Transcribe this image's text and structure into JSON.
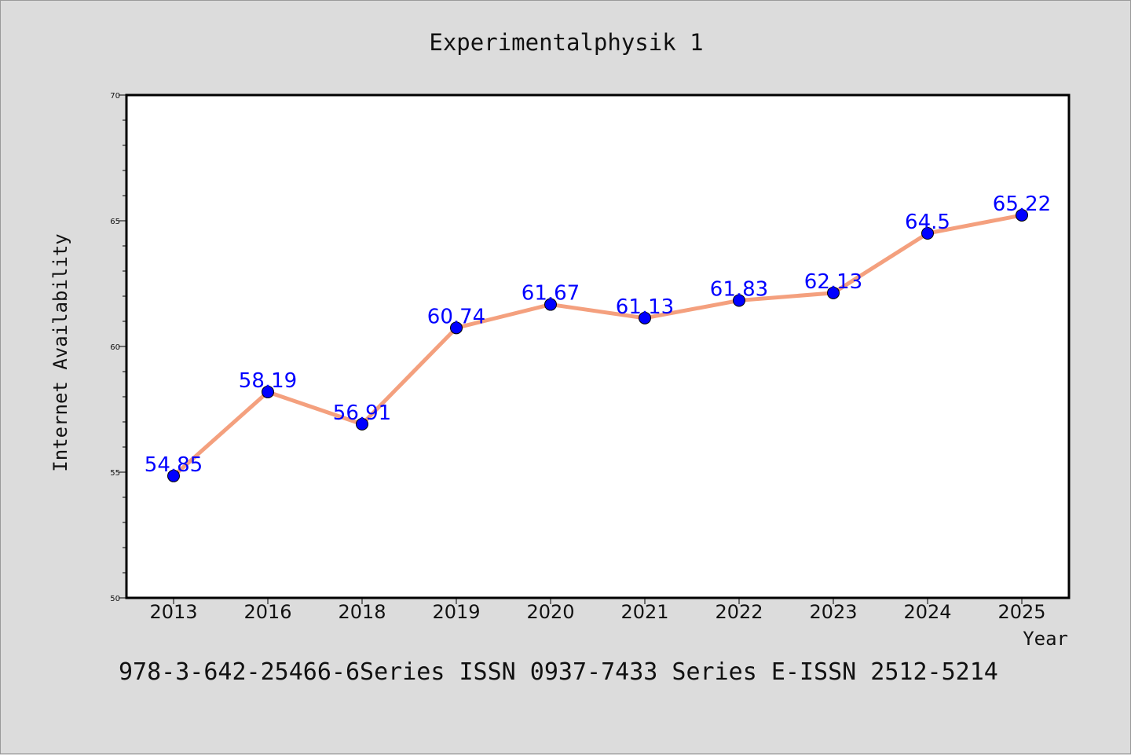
{
  "chart_data": {
    "type": "line",
    "title": "Experimentalphysik 1",
    "xlabel": "Year",
    "ylabel": "Internet Availability",
    "categories": [
      "2013",
      "2016",
      "2018",
      "2019",
      "2020",
      "2021",
      "2022",
      "2023",
      "2024",
      "2025"
    ],
    "series": [
      {
        "values": [
          54.85,
          58.19,
          56.91,
          60.74,
          61.67,
          61.13,
          61.83,
          62.13,
          64.5,
          65.22
        ],
        "labels": [
          "54.85",
          "58.19",
          "56.91",
          "60.74",
          "61.67",
          "61.13",
          "61.83",
          "62.13",
          "64.5",
          "65.22"
        ],
        "line_color": "#f4a07e",
        "marker_color": "#0000ff"
      }
    ],
    "ylim": [
      50,
      70
    ],
    "yticks": [
      "50",
      "55",
      "60",
      "65",
      "70"
    ],
    "grid": false,
    "legend": "none"
  },
  "footer": "978-3-642-25466-6Series ISSN 0937-7433 Series E-ISSN 2512-5214",
  "colors": {
    "background": "#dcdcdc",
    "plot_area": "#ffffff",
    "data_label": "#0000ff"
  }
}
